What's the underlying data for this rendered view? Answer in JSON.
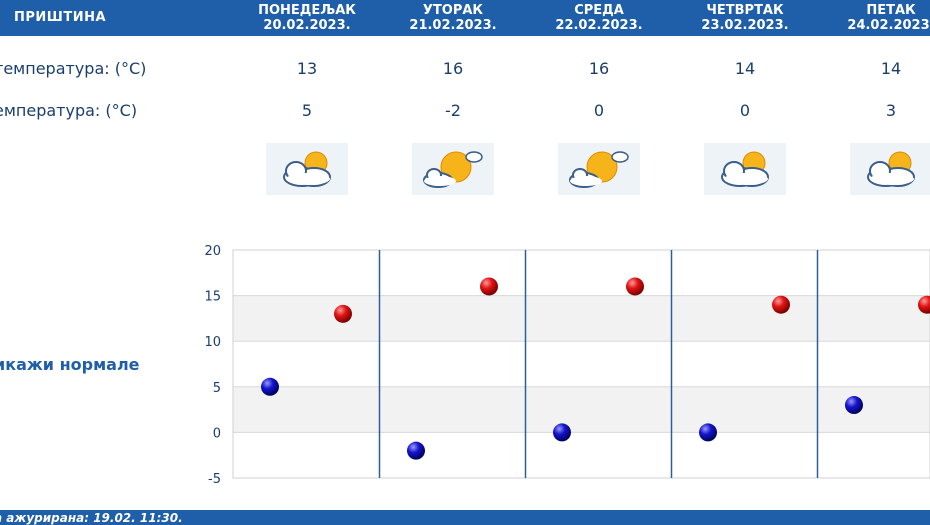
{
  "header": {
    "city": "ПРИШТИНА"
  },
  "days": [
    {
      "name": "ПОНЕДЕЉАК",
      "date": "20.02.2023.",
      "max": "13",
      "min": "5",
      "icon": "partly-cloudy-icon"
    },
    {
      "name": "УТОРАК",
      "date": "21.02.2023.",
      "max": "16",
      "min": "-2",
      "icon": "sunny-cloudy-icon"
    },
    {
      "name": "СРЕДА",
      "date": "22.02.2023.",
      "max": "16",
      "min": "0",
      "icon": "sunny-cloudy-icon"
    },
    {
      "name": "ЧЕТВРТАК",
      "date": "23.02.2023.",
      "max": "14",
      "min": "0",
      "icon": "partly-cloudy-icon"
    },
    {
      "name": "ПЕТАК",
      "date": "24.02.2023.",
      "max": "14",
      "min": "3",
      "icon": "partly-cloudy-icon"
    }
  ],
  "labels": {
    "max_temp": "температура: (°C)",
    "min_temp": "емпература: (°C)",
    "icon_row": ":",
    "normals": "икажи нормале"
  },
  "footer": {
    "updated": "а ажурирана:  19.02. 11:30."
  },
  "colors": {
    "header_bg": "#1f5ea8",
    "max_marker": "#cc1111",
    "min_marker": "#1111aa"
  },
  "chart_data": {
    "type": "scatter",
    "categories": [
      "20.02.2023.",
      "21.02.2023.",
      "22.02.2023.",
      "23.02.2023.",
      "24.02.2023."
    ],
    "series": [
      {
        "values": [
          13,
          16,
          16,
          14,
          14
        ]
      },
      {
        "values": [
          5,
          -2,
          0,
          0,
          3
        ]
      }
    ],
    "ylim": [
      -5,
      20
    ],
    "yticks": [
      20,
      15,
      10,
      5,
      0,
      -5
    ],
    "grid": true
  }
}
